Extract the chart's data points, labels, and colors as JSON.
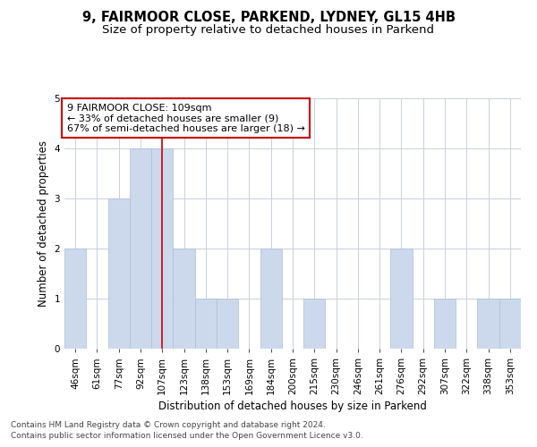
{
  "title_line1": "9, FAIRMOOR CLOSE, PARKEND, LYDNEY, GL15 4HB",
  "title_line2": "Size of property relative to detached houses in Parkend",
  "xlabel": "Distribution of detached houses by size in Parkend",
  "ylabel": "Number of detached properties",
  "categories": [
    "46sqm",
    "61sqm",
    "77sqm",
    "92sqm",
    "107sqm",
    "123sqm",
    "138sqm",
    "153sqm",
    "169sqm",
    "184sqm",
    "200sqm",
    "215sqm",
    "230sqm",
    "246sqm",
    "261sqm",
    "276sqm",
    "292sqm",
    "307sqm",
    "322sqm",
    "338sqm",
    "353sqm"
  ],
  "values": [
    2,
    0,
    3,
    4,
    4,
    2,
    1,
    1,
    0,
    2,
    0,
    1,
    0,
    0,
    0,
    2,
    0,
    1,
    0,
    1,
    1
  ],
  "bar_color": "#ccd9ed",
  "bar_edge_color": "#a8bed8",
  "highlight_index": 4,
  "highlight_line_color": "#cc0000",
  "annotation_line1": "9 FAIRMOOR CLOSE: 109sqm",
  "annotation_line2": "← 33% of detached houses are smaller (9)",
  "annotation_line3": "67% of semi-detached houses are larger (18) →",
  "annotation_box_color": "#ffffff",
  "annotation_box_edge_color": "#cc0000",
  "ylim": [
    0,
    5
  ],
  "yticks": [
    0,
    1,
    2,
    3,
    4,
    5
  ],
  "footer_line1": "Contains HM Land Registry data © Crown copyright and database right 2024.",
  "footer_line2": "Contains public sector information licensed under the Open Government Licence v3.0.",
  "bg_color": "#ffffff",
  "grid_color": "#c8d0dc",
  "title_fontsize": 10.5,
  "subtitle_fontsize": 9.5,
  "axis_label_fontsize": 8.5,
  "tick_fontsize": 7.5,
  "annotation_fontsize": 8,
  "footer_fontsize": 6.5
}
